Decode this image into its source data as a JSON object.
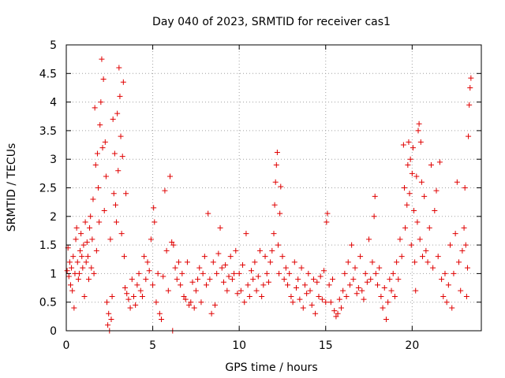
{
  "chart_data": {
    "type": "scatter",
    "title": "Day 040 of 2023, SRMTID for receiver cas1",
    "xlabel": "GPS time / hours",
    "ylabel": "SRMTID / TECUs",
    "xlim": [
      0,
      24
    ],
    "ylim": [
      0,
      5
    ],
    "xticks": [
      0,
      5,
      10,
      15,
      20
    ],
    "xtick_labels": [
      "0",
      "5",
      "10",
      "15",
      "20"
    ],
    "yticks": [
      0,
      0.5,
      1,
      1.5,
      2,
      2.5,
      3,
      3.5,
      4,
      4.5,
      5
    ],
    "ytick_labels": [
      "0",
      "0.5",
      "1",
      "1.5",
      "2",
      "2.5",
      "3",
      "3.5",
      "4",
      "4.5",
      "5"
    ],
    "grid": true,
    "marker": "+",
    "colors": {
      "points": "#e00000",
      "grid": "#a0a0a0",
      "axis": "#000000"
    },
    "series": [
      {
        "name": "SRMTID",
        "points": [
          [
            0.05,
            1.05
          ],
          [
            0.1,
            1.45
          ],
          [
            0.15,
            0.95
          ],
          [
            0.2,
            1.2
          ],
          [
            0.25,
            0.8
          ],
          [
            0.3,
            1.1
          ],
          [
            0.35,
            0.7
          ],
          [
            0.4,
            1.3
          ],
          [
            0.45,
            0.4
          ],
          [
            0.5,
            1.0
          ],
          [
            0.55,
            1.6
          ],
          [
            0.6,
            1.8
          ],
          [
            0.65,
            1.2
          ],
          [
            0.7,
            0.9
          ],
          [
            0.75,
            1.0
          ],
          [
            0.8,
            1.4
          ],
          [
            0.85,
            1.7
          ],
          [
            0.9,
            1.3
          ],
          [
            0.95,
            1.1
          ],
          [
            1.0,
            1.5
          ],
          [
            1.05,
            0.6
          ],
          [
            1.1,
            1.9
          ],
          [
            1.15,
            1.2
          ],
          [
            1.2,
            1.55
          ],
          [
            1.25,
            1.3
          ],
          [
            1.3,
            0.9
          ],
          [
            1.35,
            1.8
          ],
          [
            1.4,
            2.0
          ],
          [
            1.45,
            1.1
          ],
          [
            1.5,
            1.6
          ],
          [
            1.55,
            2.3
          ],
          [
            1.6,
            1.0
          ],
          [
            1.65,
            3.9
          ],
          [
            1.7,
            2.9
          ],
          [
            1.75,
            1.4
          ],
          [
            1.8,
            3.1
          ],
          [
            1.85,
            2.5
          ],
          [
            1.9,
            1.9
          ],
          [
            1.95,
            3.6
          ],
          [
            2.0,
            4.0
          ],
          [
            2.05,
            4.75
          ],
          [
            2.1,
            3.2
          ],
          [
            2.15,
            4.4
          ],
          [
            2.2,
            2.1
          ],
          [
            2.25,
            3.3
          ],
          [
            2.3,
            2.7
          ],
          [
            2.35,
            0.5
          ],
          [
            2.4,
            0.1
          ],
          [
            2.45,
            0.3
          ],
          [
            2.5,
            0.0
          ],
          [
            2.55,
            1.6
          ],
          [
            2.6,
            0.2
          ],
          [
            2.65,
            0.6
          ],
          [
            2.7,
            3.7
          ],
          [
            2.75,
            2.4
          ],
          [
            2.8,
            3.1
          ],
          [
            2.85,
            2.2
          ],
          [
            2.9,
            1.9
          ],
          [
            2.95,
            3.8
          ],
          [
            3.0,
            2.8
          ],
          [
            3.05,
            4.6
          ],
          [
            3.1,
            4.1
          ],
          [
            3.15,
            3.4
          ],
          [
            3.2,
            1.7
          ],
          [
            3.25,
            3.05
          ],
          [
            3.3,
            4.35
          ],
          [
            3.35,
            1.3
          ],
          [
            3.4,
            0.75
          ],
          [
            3.45,
            2.4
          ],
          [
            3.5,
            0.65
          ],
          [
            3.6,
            0.55
          ],
          [
            3.7,
            0.4
          ],
          [
            3.8,
            0.9
          ],
          [
            3.9,
            0.6
          ],
          [
            4.0,
            0.45
          ],
          [
            4.1,
            0.8
          ],
          [
            4.2,
            1.0
          ],
          [
            4.3,
            0.7
          ],
          [
            4.4,
            0.6
          ],
          [
            4.5,
            1.3
          ],
          [
            4.6,
            0.9
          ],
          [
            4.7,
            1.2
          ],
          [
            4.8,
            1.05
          ],
          [
            4.9,
            1.6
          ],
          [
            5.0,
            0.8
          ],
          [
            5.05,
            2.15
          ],
          [
            5.1,
            1.9
          ],
          [
            5.2,
            0.5
          ],
          [
            5.3,
            1.0
          ],
          [
            5.4,
            0.3
          ],
          [
            5.5,
            0.2
          ],
          [
            5.6,
            0.95
          ],
          [
            5.7,
            2.45
          ],
          [
            5.8,
            1.4
          ],
          [
            5.9,
            0.7
          ],
          [
            6.0,
            2.7
          ],
          [
            6.1,
            1.55
          ],
          [
            6.15,
            0.0
          ],
          [
            6.2,
            1.5
          ],
          [
            6.3,
            1.1
          ],
          [
            6.4,
            0.9
          ],
          [
            6.5,
            1.2
          ],
          [
            6.6,
            0.8
          ],
          [
            6.7,
            1.0
          ],
          [
            6.8,
            0.6
          ],
          [
            6.9,
            0.55
          ],
          [
            7.0,
            1.2
          ],
          [
            7.1,
            0.45
          ],
          [
            7.2,
            0.5
          ],
          [
            7.3,
            0.85
          ],
          [
            7.4,
            0.4
          ],
          [
            7.5,
            0.7
          ],
          [
            7.6,
            0.9
          ],
          [
            7.7,
            1.1
          ],
          [
            7.8,
            0.5
          ],
          [
            7.9,
            1.0
          ],
          [
            8.0,
            1.3
          ],
          [
            8.1,
            0.8
          ],
          [
            8.2,
            2.05
          ],
          [
            8.3,
            0.9
          ],
          [
            8.4,
            0.3
          ],
          [
            8.5,
            1.2
          ],
          [
            8.6,
            0.45
          ],
          [
            8.7,
            1.0
          ],
          [
            8.8,
            1.35
          ],
          [
            8.9,
            1.8
          ],
          [
            9.0,
            1.1
          ],
          [
            9.1,
            0.85
          ],
          [
            9.2,
            1.15
          ],
          [
            9.3,
            0.7
          ],
          [
            9.4,
            0.95
          ],
          [
            9.5,
            1.3
          ],
          [
            9.6,
            0.9
          ],
          [
            9.7,
            1.0
          ],
          [
            9.8,
            1.4
          ],
          [
            9.9,
            0.65
          ],
          [
            10.0,
            1.0
          ],
          [
            10.1,
            0.7
          ],
          [
            10.2,
            1.15
          ],
          [
            10.3,
            0.5
          ],
          [
            10.4,
            1.7
          ],
          [
            10.5,
            0.8
          ],
          [
            10.6,
            0.6
          ],
          [
            10.7,
            1.05
          ],
          [
            10.8,
            0.9
          ],
          [
            10.9,
            1.2
          ],
          [
            11.0,
            0.7
          ],
          [
            11.1,
            0.95
          ],
          [
            11.2,
            1.4
          ],
          [
            11.3,
            0.6
          ],
          [
            11.4,
            0.8
          ],
          [
            11.5,
            1.3
          ],
          [
            11.6,
            1.0
          ],
          [
            11.7,
            0.85
          ],
          [
            11.8,
            1.2
          ],
          [
            11.9,
            1.4
          ],
          [
            12.0,
            1.7
          ],
          [
            12.05,
            2.2
          ],
          [
            12.1,
            2.6
          ],
          [
            12.15,
            2.9
          ],
          [
            12.2,
            3.12
          ],
          [
            12.25,
            1.5
          ],
          [
            12.3,
            1.0
          ],
          [
            12.35,
            2.05
          ],
          [
            12.4,
            2.52
          ],
          [
            12.5,
            1.3
          ],
          [
            12.6,
            0.9
          ],
          [
            12.7,
            1.1
          ],
          [
            12.8,
            0.8
          ],
          [
            12.9,
            1.0
          ],
          [
            13.0,
            0.6
          ],
          [
            13.1,
            0.5
          ],
          [
            13.2,
            1.2
          ],
          [
            13.3,
            0.75
          ],
          [
            13.4,
            0.9
          ],
          [
            13.5,
            0.55
          ],
          [
            13.6,
            1.1
          ],
          [
            13.7,
            0.4
          ],
          [
            13.8,
            0.8
          ],
          [
            13.9,
            0.65
          ],
          [
            14.0,
            1.0
          ],
          [
            14.1,
            0.7
          ],
          [
            14.2,
            0.45
          ],
          [
            14.3,
            0.9
          ],
          [
            14.4,
            0.3
          ],
          [
            14.5,
            0.85
          ],
          [
            14.6,
            0.6
          ],
          [
            14.7,
            0.95
          ],
          [
            14.8,
            0.55
          ],
          [
            14.9,
            1.05
          ],
          [
            15.0,
            0.5
          ],
          [
            15.05,
            1.9
          ],
          [
            15.1,
            2.05
          ],
          [
            15.2,
            0.8
          ],
          [
            15.3,
            0.5
          ],
          [
            15.4,
            0.9
          ],
          [
            15.5,
            0.35
          ],
          [
            15.6,
            0.25
          ],
          [
            15.7,
            0.3
          ],
          [
            15.8,
            0.55
          ],
          [
            15.9,
            0.4
          ],
          [
            16.0,
            0.7
          ],
          [
            16.1,
            1.0
          ],
          [
            16.2,
            0.6
          ],
          [
            16.3,
            1.2
          ],
          [
            16.4,
            0.8
          ],
          [
            16.5,
            1.5
          ],
          [
            16.6,
            0.9
          ],
          [
            16.7,
            1.1
          ],
          [
            16.8,
            0.65
          ],
          [
            16.9,
            0.75
          ],
          [
            17.0,
            1.3
          ],
          [
            17.1,
            0.7
          ],
          [
            17.2,
            0.55
          ],
          [
            17.3,
            1.0
          ],
          [
            17.4,
            0.85
          ],
          [
            17.5,
            1.6
          ],
          [
            17.6,
            0.9
          ],
          [
            17.7,
            1.2
          ],
          [
            17.8,
            2.0
          ],
          [
            17.85,
            2.35
          ],
          [
            17.9,
            1.0
          ],
          [
            18.0,
            0.8
          ],
          [
            18.1,
            1.1
          ],
          [
            18.2,
            0.6
          ],
          [
            18.3,
            0.4
          ],
          [
            18.4,
            0.75
          ],
          [
            18.5,
            0.2
          ],
          [
            18.6,
            0.5
          ],
          [
            18.7,
            0.9
          ],
          [
            18.8,
            0.7
          ],
          [
            18.9,
            1.0
          ],
          [
            19.0,
            0.6
          ],
          [
            19.1,
            1.2
          ],
          [
            19.2,
            0.9
          ],
          [
            19.3,
            1.6
          ],
          [
            19.4,
            1.3
          ],
          [
            19.5,
            3.25
          ],
          [
            19.55,
            2.5
          ],
          [
            19.6,
            1.8
          ],
          [
            19.7,
            2.2
          ],
          [
            19.75,
            2.9
          ],
          [
            19.8,
            3.3
          ],
          [
            19.85,
            2.4
          ],
          [
            19.9,
            3.0
          ],
          [
            19.95,
            1.5
          ],
          [
            20.0,
            2.75
          ],
          [
            20.05,
            3.2
          ],
          [
            20.1,
            2.1
          ],
          [
            20.15,
            1.2
          ],
          [
            20.2,
            0.7
          ],
          [
            20.25,
            2.7
          ],
          [
            20.3,
            1.9
          ],
          [
            20.35,
            3.5
          ],
          [
            20.4,
            3.62
          ],
          [
            20.45,
            1.6
          ],
          [
            20.5,
            3.3
          ],
          [
            20.55,
            2.6
          ],
          [
            20.6,
            1.3
          ],
          [
            20.7,
            2.35
          ],
          [
            20.8,
            1.4
          ],
          [
            20.9,
            1.2
          ],
          [
            21.0,
            1.8
          ],
          [
            21.1,
            2.9
          ],
          [
            21.2,
            1.1
          ],
          [
            21.3,
            2.1
          ],
          [
            21.4,
            2.45
          ],
          [
            21.5,
            1.3
          ],
          [
            21.6,
            2.95
          ],
          [
            21.7,
            0.9
          ],
          [
            21.8,
            0.6
          ],
          [
            21.9,
            1.0
          ],
          [
            22.0,
            0.5
          ],
          [
            22.1,
            0.8
          ],
          [
            22.2,
            1.5
          ],
          [
            22.3,
            0.4
          ],
          [
            22.4,
            1.0
          ],
          [
            22.5,
            1.7
          ],
          [
            22.6,
            2.6
          ],
          [
            22.7,
            1.2
          ],
          [
            22.8,
            0.7
          ],
          [
            22.9,
            1.4
          ],
          [
            23.0,
            1.8
          ],
          [
            23.05,
            2.5
          ],
          [
            23.1,
            1.5
          ],
          [
            23.15,
            0.6
          ],
          [
            23.2,
            1.1
          ],
          [
            23.25,
            3.4
          ],
          [
            23.3,
            3.95
          ],
          [
            23.35,
            4.25
          ],
          [
            23.4,
            4.42
          ]
        ]
      }
    ]
  }
}
